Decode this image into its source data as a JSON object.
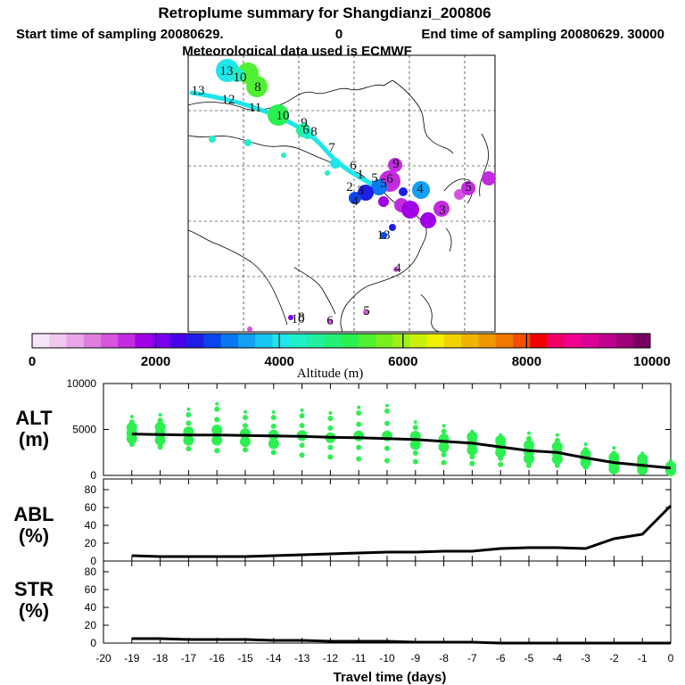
{
  "header": {
    "title": "Retroplume summary for Shangdianzi_200806",
    "line2a": "Start time of sampling 20080629.",
    "line2b": "0",
    "line2c": "End time of sampling 20080629. 30000",
    "line3": "Meteorological data used is ECMWF"
  },
  "colorbar": {
    "tick_labels": [
      "0",
      "2000",
      "4000",
      "6000",
      "8000",
      "10000"
    ],
    "label": "Altitude (m)",
    "colors": [
      "#f7e6f7",
      "#f0c8f0",
      "#eaa6ea",
      "#e07ee0",
      "#d655dc",
      "#c22be0",
      "#a000e6",
      "#7a00ee",
      "#4a00e8",
      "#1e1ee6",
      "#0a46f0",
      "#0a78f0",
      "#14a0f4",
      "#18c8f4",
      "#1ee6ea",
      "#20f0c8",
      "#22f0a0",
      "#24f078",
      "#2cf050",
      "#50f032",
      "#78f01e",
      "#a0f014",
      "#c8f00a",
      "#f0f000",
      "#f0d200",
      "#f0b400",
      "#f09600",
      "#f07800",
      "#f05000",
      "#f00000",
      "#f00064",
      "#f0008c",
      "#dc0096",
      "#c00090",
      "#a00078",
      "#780060"
    ]
  },
  "map": {
    "labels": [
      {
        "t": "13",
        "c": "#111"
      },
      {
        "t": "12",
        "c": "#111"
      },
      {
        "t": "11",
        "c": "#111"
      },
      {
        "t": "10",
        "c": "#111"
      },
      {
        "t": "9",
        "c": "#111"
      },
      {
        "t": "8",
        "c": "#111"
      },
      {
        "t": "7",
        "c": "#111"
      },
      {
        "t": "6",
        "c": "#111"
      },
      {
        "t": "5",
        "c": "#111"
      },
      {
        "t": "13",
        "c": "#111"
      },
      {
        "t": "10",
        "c": "#111"
      },
      {
        "t": "8",
        "c": "#111"
      },
      {
        "t": "6",
        "c": "#111"
      },
      {
        "t": "1",
        "c": "#111"
      },
      {
        "t": "2",
        "c": "#111"
      },
      {
        "t": "3",
        "c": "#111"
      },
      {
        "t": "4",
        "c": "#111"
      },
      {
        "t": "9",
        "c": "#111"
      },
      {
        "t": "5",
        "c": "#111"
      },
      {
        "t": "6",
        "c": "#111"
      },
      {
        "t": "4",
        "c": "#111"
      },
      {
        "t": "5",
        "c": "#111"
      },
      {
        "t": "3",
        "c": "#111"
      },
      {
        "t": "13",
        "c": "#111"
      },
      {
        "t": "4",
        "c": "#111"
      },
      {
        "t": "5",
        "c": "#111"
      },
      {
        "t": "10",
        "c": "#111"
      },
      {
        "t": "6",
        "c": "#111"
      },
      {
        "t": "8",
        "c": "#111"
      }
    ]
  },
  "panels": {
    "alt": {
      "label_top": "ALT",
      "label_bot": "(m)",
      "yticks": [
        "10000",
        "5000",
        "0"
      ]
    },
    "abl": {
      "label_top": "ABL",
      "label_bot": "(%)",
      "yticks": [
        "80",
        "60",
        "40",
        "20",
        "0"
      ]
    },
    "str": {
      "label_top": "STR",
      "label_bot": "(%)",
      "yticks": [
        "80",
        "60",
        "40",
        "20",
        "0"
      ]
    }
  },
  "chart_data": [
    {
      "type": "line",
      "title": "ALT",
      "ylabel": "ALT (m)",
      "ylim": [
        0,
        10000
      ],
      "x": [
        -19,
        -18,
        -17,
        -16,
        -15,
        -14,
        -13,
        -12,
        -11,
        -10,
        -9,
        -8,
        -7,
        -6,
        -5,
        -4,
        -3,
        -2,
        -1,
        0
      ],
      "values": [
        4500,
        4450,
        4400,
        4400,
        4350,
        4300,
        4250,
        4150,
        4100,
        4000,
        3900,
        3700,
        3500,
        3100,
        2700,
        2500,
        1900,
        1400,
        1100,
        800
      ],
      "scatter_upper": [
        5800,
        6000,
        6600,
        7200,
        6300,
        6300,
        6500,
        6200,
        6800,
        7000,
        5200,
        4800,
        4200,
        3800,
        4000,
        3800,
        2800,
        2400,
        1800,
        1000
      ],
      "scatter_lower": [
        3400,
        3100,
        2900,
        2700,
        2800,
        2500,
        2200,
        2000,
        1800,
        1600,
        1500,
        1400,
        1300,
        1200,
        1100,
        1100,
        900,
        700,
        600,
        500
      ]
    },
    {
      "type": "line",
      "title": "ABL",
      "ylabel": "ABL (%)",
      "ylim": [
        0,
        100
      ],
      "x": [
        -19,
        -18,
        -17,
        -16,
        -15,
        -14,
        -13,
        -12,
        -11,
        -10,
        -9,
        -8,
        -7,
        -6,
        -5,
        -4,
        -3,
        -2,
        -1,
        0
      ],
      "values": [
        6,
        5,
        5,
        5,
        5,
        6,
        7,
        8,
        9,
        10,
        10,
        11,
        11,
        14,
        15,
        15,
        14,
        25,
        30,
        62
      ]
    },
    {
      "type": "line",
      "title": "STR",
      "ylabel": "STR (%)",
      "ylim": [
        0,
        100
      ],
      "x": [
        -19,
        -18,
        -17,
        -16,
        -15,
        -14,
        -13,
        -12,
        -11,
        -10,
        -9,
        -8,
        -7,
        -6,
        -5,
        -4,
        -3,
        -2,
        -1,
        0
      ],
      "values": [
        5,
        5,
        4,
        4,
        4,
        3,
        3,
        2,
        2,
        2,
        1,
        1,
        1,
        0,
        0,
        0,
        0,
        0,
        0,
        0
      ]
    }
  ],
  "xaxis": {
    "ticks": [
      "-20",
      "-19",
      "-18",
      "-17",
      "-16",
      "-15",
      "-14",
      "-13",
      "-12",
      "-11",
      "-10",
      "-9",
      "-8",
      "-7",
      "-6",
      "-5",
      "-4",
      "-3",
      "-2",
      "-1",
      "0"
    ],
    "label": "Travel time (days)"
  }
}
